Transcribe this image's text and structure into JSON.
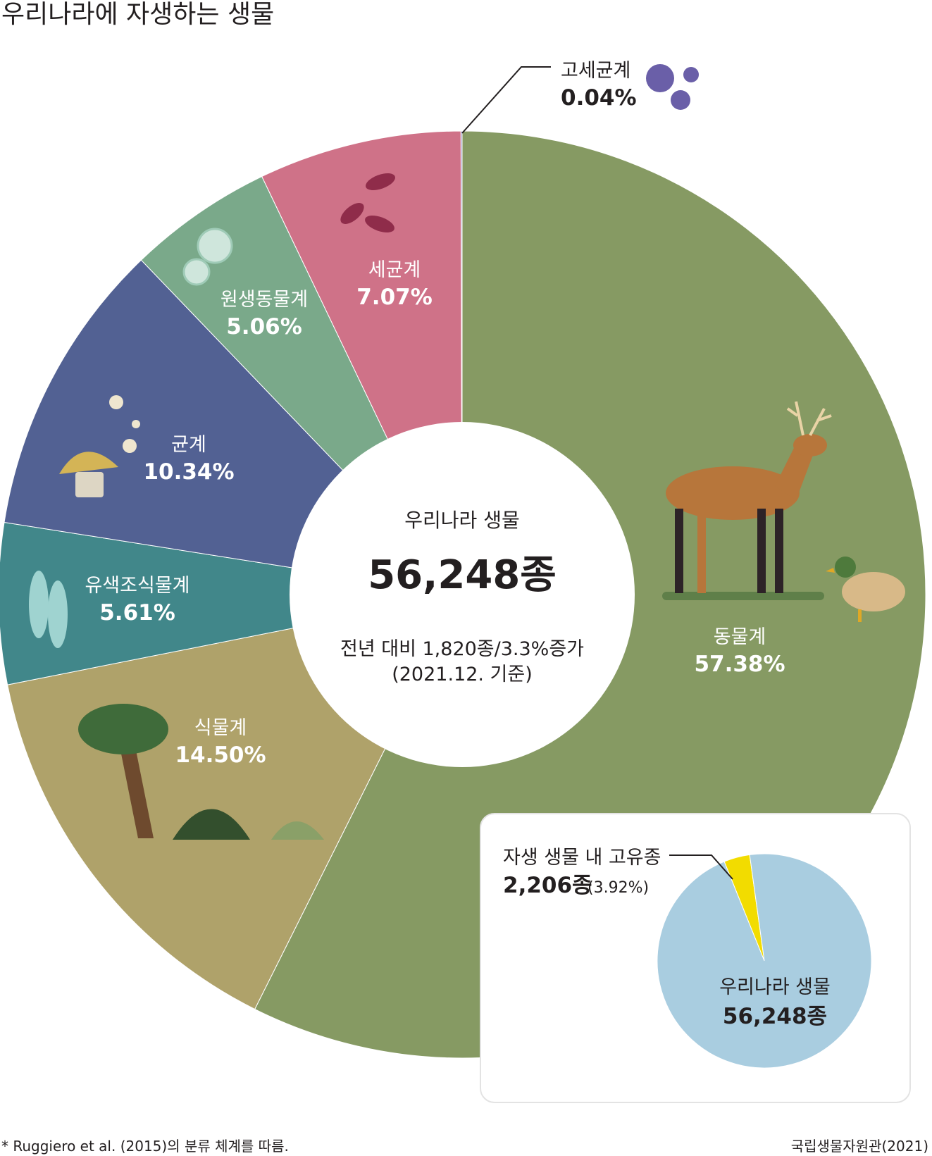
{
  "title": "우리나라에 자생하는 생물",
  "center": {
    "label": "우리나라 생물",
    "total": "56,248종",
    "change_line": "전년 대비 1,820종/3.3%증가",
    "date_line": "(2021.12. 기준)"
  },
  "chart_data": {
    "type": "pie",
    "title": "우리나라에 자생하는 생물",
    "slices": [
      {
        "name": "동물계",
        "value": 57.38,
        "label": "57.38%",
        "color": "#869a63"
      },
      {
        "name": "식물계",
        "value": 14.5,
        "label": "14.50%",
        "color": "#afa26a"
      },
      {
        "name": "유색조식물계",
        "value": 5.61,
        "label": "5.61%",
        "color": "#41878a"
      },
      {
        "name": "균계",
        "value": 10.34,
        "label": "10.34%",
        "color": "#526193"
      },
      {
        "name": "원생동물계",
        "value": 5.06,
        "label": "5.06%",
        "color": "#7aa98a"
      },
      {
        "name": "세균계",
        "value": 7.07,
        "label": "7.07%",
        "color": "#cf7288"
      },
      {
        "name": "고세균계",
        "value": 0.04,
        "label": "0.04%",
        "color": "#6a5fa8"
      }
    ]
  },
  "inset": {
    "callout_label": "자생 생물 내 고유종",
    "callout_count": "2,206종",
    "callout_pct": "(3.92%)",
    "pie_label": "우리나라 생물",
    "pie_total": "56,248종",
    "chart_data": {
      "type": "pie",
      "slices": [
        {
          "name": "자생 생물 내 고유종",
          "value": 3.92,
          "color": "#f2dc00"
        },
        {
          "name": "우리나라 생물",
          "value": 96.08,
          "color": "#a9cde0"
        }
      ]
    }
  },
  "footnote": "* Ruggiero et al. (2015)의 분류 체계를 따름.",
  "source": "국립생물자원관(2021)"
}
